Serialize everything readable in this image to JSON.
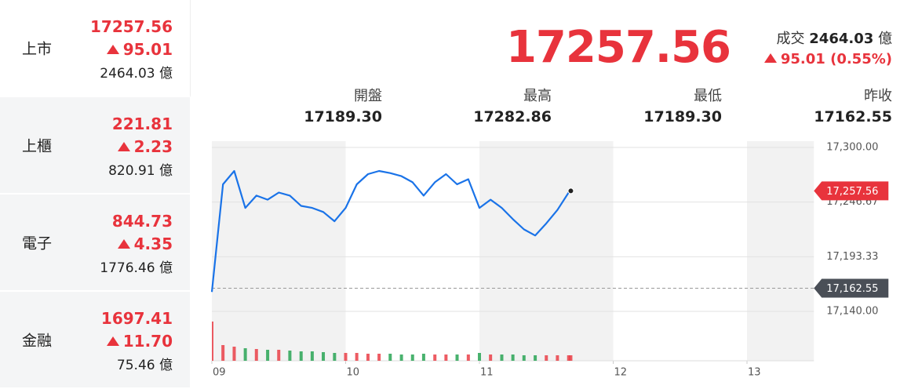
{
  "sidebar": [
    {
      "name": "上市",
      "price": 17257.56,
      "change": 95.01,
      "volume": 2464.03,
      "unit": "億"
    },
    {
      "name": "上櫃",
      "price": 221.81,
      "change": 2.23,
      "volume": 820.91,
      "unit": "億"
    },
    {
      "name": "電子",
      "price": 844.73,
      "change": 4.35,
      "volume": 1776.46,
      "unit": "億"
    },
    {
      "name": "金融",
      "price": 1697.41,
      "change": {
        "value": 11.7,
        "label": "11.70"
      },
      "volume": 75.46,
      "unit": "億"
    }
  ],
  "quote": {
    "price": 17257.56,
    "turnover_label": "成交",
    "turnover": 2464.03,
    "unit": "億",
    "change": 95.01,
    "change_pct": {
      "value": 0.55,
      "label": "(0.55%)"
    },
    "stats": [
      {
        "label": "開盤",
        "value": {
          "value": 17189.3,
          "label": "17189.30"
        }
      },
      {
        "label": "最高",
        "value": 17282.86
      },
      {
        "label": "最低",
        "value": {
          "value": 17189.3,
          "label": "17189.30"
        }
      },
      {
        "label": "昨收",
        "value": 17162.55
      }
    ]
  },
  "chart_data": {
    "type": "line",
    "color": "#1a73e8",
    "up_color": "#e8333c",
    "down_color": "#1c9f4a",
    "x": [
      9,
      9.083,
      9.167,
      9.25,
      9.333,
      9.417,
      9.5,
      9.583,
      9.667,
      9.75,
      9.833,
      9.917,
      10,
      10.083,
      10.167,
      10.25,
      10.333,
      10.417,
      10.5,
      10.583,
      10.667,
      10.75,
      10.833,
      10.917,
      11,
      11.083,
      11.167,
      11.25,
      11.333,
      11.417,
      11.5,
      11.583,
      11.667,
      11.683
    ],
    "values": [
      17159,
      17264,
      17277,
      17241,
      17253,
      17249,
      17256,
      17253,
      17243,
      17241,
      17237,
      17228,
      17241,
      17264,
      17274,
      17277,
      17275,
      17272,
      17266,
      17253,
      17266,
      17274,
      17264,
      17269,
      17241,
      17249,
      17241,
      17230,
      17220,
      17214,
      17226,
      17239,
      17256,
      17257.56
    ],
    "volume": [
      50,
      20,
      18,
      16,
      15,
      14,
      14,
      13,
      12,
      12,
      11,
      10,
      10,
      10,
      9,
      9,
      9,
      8,
      8,
      9,
      8,
      8,
      8,
      8,
      10,
      8,
      8,
      8,
      7,
      7,
      7,
      7,
      7,
      7
    ],
    "volume_lim": [
      0,
      60
    ],
    "xlim": [
      9,
      13.5
    ],
    "xticks": [
      {
        "value": 9,
        "label": "09"
      },
      10,
      11,
      12,
      13
    ],
    "ylim": [
      17140,
      17300
    ],
    "yticks": [
      {
        "value": 17300,
        "label": "17,300.00"
      },
      {
        "value": 17246.67,
        "label": "17,246.67"
      },
      {
        "value": 17193.33,
        "label": "17,193.33"
      },
      {
        "value": 17140,
        "label": "17,140.00"
      }
    ],
    "last": {
      "value": 17257.56,
      "label": "17,257.56"
    },
    "prev_close": {
      "value": 17162.55,
      "label": "17,162.55"
    }
  }
}
